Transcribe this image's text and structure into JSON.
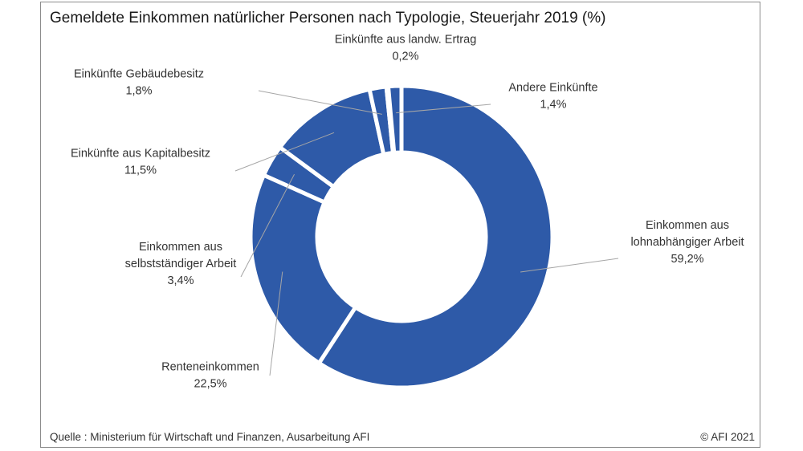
{
  "chart_data": {
    "type": "pie",
    "title": "Gemeldete Einkommen natürlicher Personen nach Typologie, Steuerjahr 2019 (%)",
    "slices": [
      {
        "name": "Einkommen aus lohnabhängiger Arbeit",
        "label_lines": [
          "Einkommen aus",
          "lohnabhängiger Arbeit"
        ],
        "value": 59.2,
        "value_label": "59,2%"
      },
      {
        "name": "Renteneinkommen",
        "label_lines": [
          "Renteneinkommen"
        ],
        "value": 22.5,
        "value_label": "22,5%"
      },
      {
        "name": "Einkommen aus selbstständiger Arbeit",
        "label_lines": [
          "Einkommen aus",
          "selbstständiger Arbeit"
        ],
        "value": 3.4,
        "value_label": "3,4%"
      },
      {
        "name": "Einkünfte aus Kapitalbesitz",
        "label_lines": [
          "Einkünfte aus Kapitalbesitz"
        ],
        "value": 11.5,
        "value_label": "11,5%"
      },
      {
        "name": "Einkünfte Gebäudebesitz",
        "label_lines": [
          "Einkünfte Gebäudebesitz"
        ],
        "value": 1.8,
        "value_label": "1,8%"
      },
      {
        "name": "Einkünfte aus landw. Ertrag",
        "label_lines": [
          "Einkünfte aus landw. Ertrag"
        ],
        "value": 0.2,
        "value_label": "0,2%"
      },
      {
        "name": "Andere Einkünfte",
        "label_lines": [
          "Andere Einkünfte"
        ],
        "value": 1.4,
        "value_label": "1,4%"
      }
    ],
    "colors": {
      "slice": "#2e5aa8",
      "leader": "#a6a6a6",
      "separator": "#ffffff"
    },
    "donut": true
  },
  "footer": {
    "source": "Quelle : Ministerium für Wirtschaft und Finanzen, Ausarbeitung AFI",
    "copyright": "© AFI 2021"
  }
}
